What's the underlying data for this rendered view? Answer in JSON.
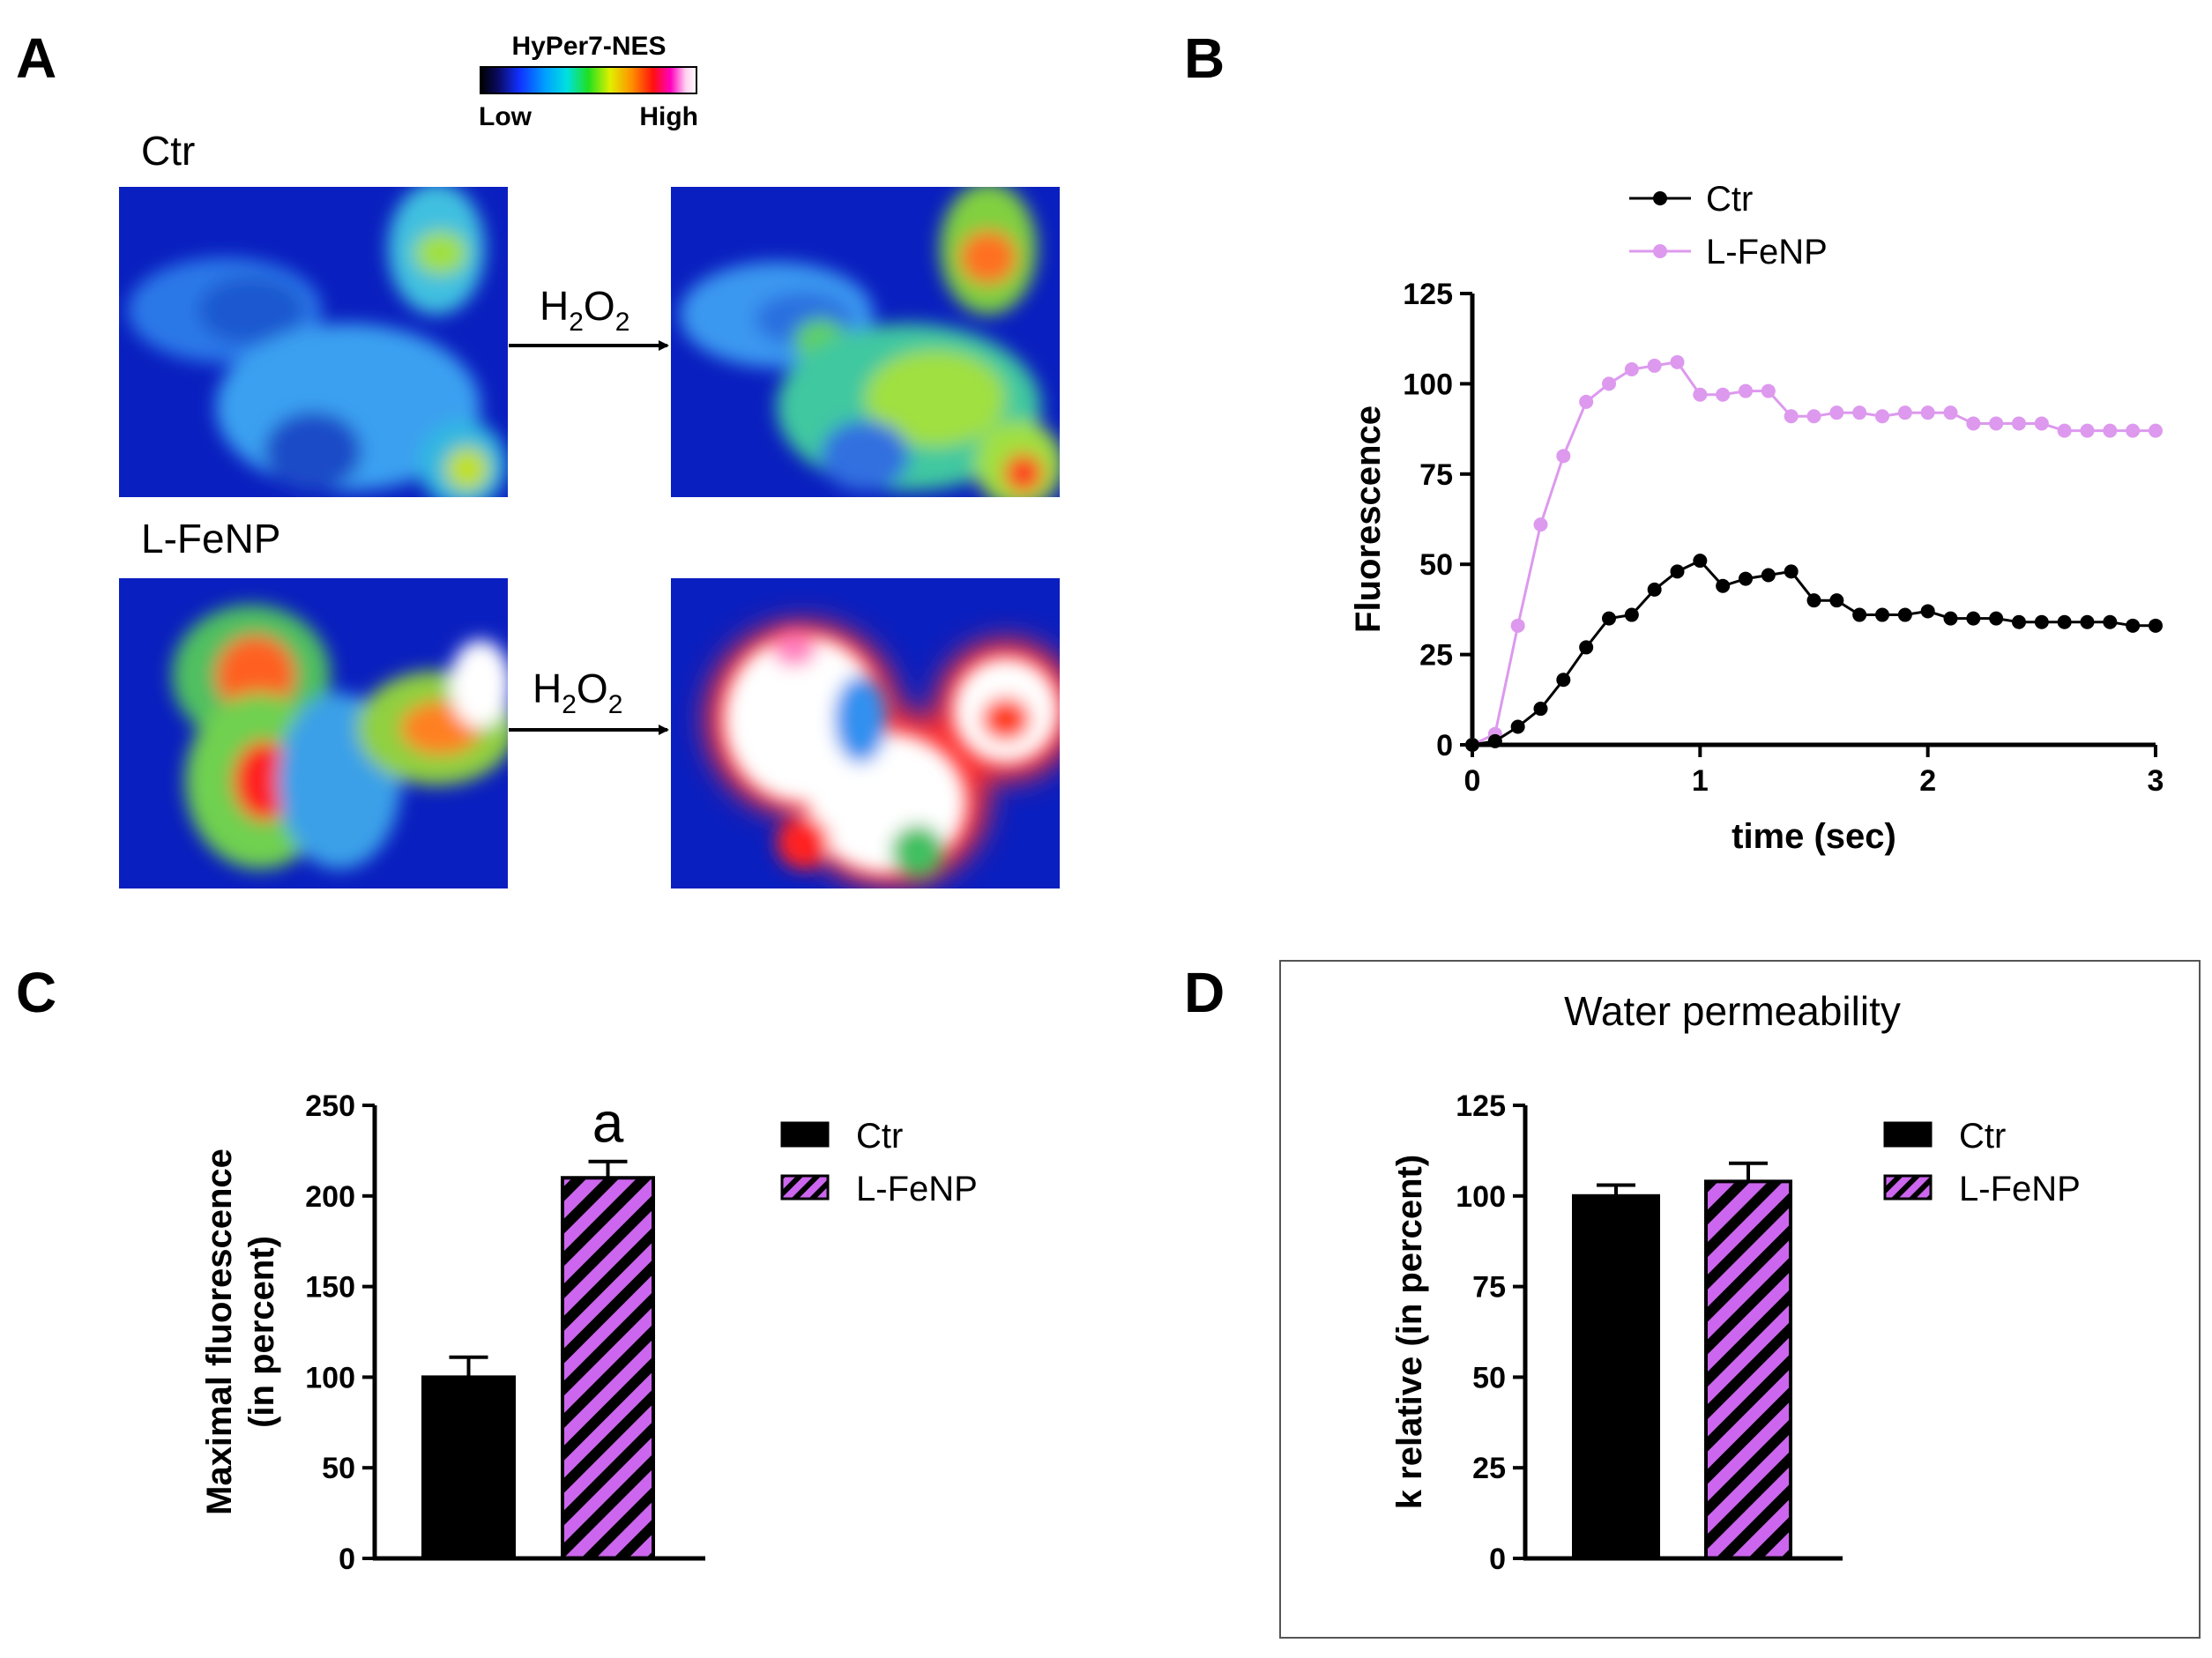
{
  "panel_labels": {
    "a": "A",
    "b": "B",
    "c": "C",
    "d": "D"
  },
  "panel_a": {
    "colorbar": {
      "title": "HyPer7-NES",
      "low": "Low",
      "high": "High"
    },
    "row_labels": {
      "ctr": "Ctr",
      "lfenp": "L-FeNP"
    },
    "arrow_label": {
      "main": "H",
      "sub1": "2",
      "mid": "O",
      "sub2": "2"
    }
  },
  "colors": {
    "ctr": "#000000",
    "lfenp": "#dd99ee",
    "lfenp_hatch": "#cc66ee",
    "image_background": "#0a1fbf"
  },
  "chart_data": [
    {
      "id": "B",
      "type": "line",
      "title": "",
      "xlabel": "time (sec)",
      "ylabel": "Fluorescence",
      "xlim": [
        0,
        3
      ],
      "ylim": [
        0,
        125
      ],
      "xticks": [
        0,
        1,
        2,
        3
      ],
      "yticks": [
        0,
        25,
        50,
        75,
        100,
        125
      ],
      "legend_position": "top-left",
      "grid": false,
      "x": [
        0,
        0.1,
        0.2,
        0.3,
        0.4,
        0.5,
        0.6,
        0.7,
        0.8,
        0.9,
        1.0,
        1.1,
        1.2,
        1.3,
        1.4,
        1.5,
        1.6,
        1.7,
        1.8,
        1.9,
        2.0,
        2.1,
        2.2,
        2.3,
        2.4,
        2.5,
        2.6,
        2.7,
        2.8,
        2.9,
        3.0
      ],
      "series": [
        {
          "name": "Ctr",
          "color": "#000000",
          "values": [
            0,
            1,
            5,
            10,
            18,
            27,
            35,
            36,
            43,
            48,
            51,
            44,
            46,
            47,
            48,
            40,
            40,
            36,
            36,
            36,
            37,
            35,
            35,
            35,
            34,
            34,
            34,
            34,
            34,
            33,
            33
          ]
        },
        {
          "name": "L-FeNP",
          "color": "#dd99ee",
          "values": [
            0,
            3,
            33,
            61,
            80,
            95,
            100,
            104,
            105,
            106,
            97,
            97,
            98,
            98,
            91,
            91,
            92,
            92,
            91,
            92,
            92,
            92,
            89,
            89,
            89,
            89,
            87,
            87,
            87,
            87,
            87
          ]
        }
      ]
    },
    {
      "id": "C",
      "type": "bar",
      "title": "",
      "ylabel": "Maximal fluorescence\n(in percent)",
      "ylabel_lines": [
        "Maximal fluorescence",
        "(in percent)"
      ],
      "ylim": [
        0,
        250
      ],
      "yticks": [
        0,
        50,
        100,
        150,
        200,
        250
      ],
      "categories": [
        "Ctr",
        "L-FeNP"
      ],
      "values": [
        100,
        210
      ],
      "errors": [
        11,
        9
      ],
      "annotations": [
        "",
        "a"
      ],
      "legend": [
        "Ctr",
        "L-FeNP"
      ],
      "legend_position": "right"
    },
    {
      "id": "D",
      "type": "bar",
      "title": "Water permeability",
      "ylabel": "k relative (in percent)",
      "ylim": [
        0,
        125
      ],
      "yticks": [
        0,
        25,
        50,
        75,
        100,
        125
      ],
      "categories": [
        "Ctr",
        "L-FeNP"
      ],
      "values": [
        100,
        104
      ],
      "errors": [
        3,
        5
      ],
      "legend": [
        "Ctr",
        "L-FeNP"
      ],
      "legend_position": "right"
    }
  ]
}
